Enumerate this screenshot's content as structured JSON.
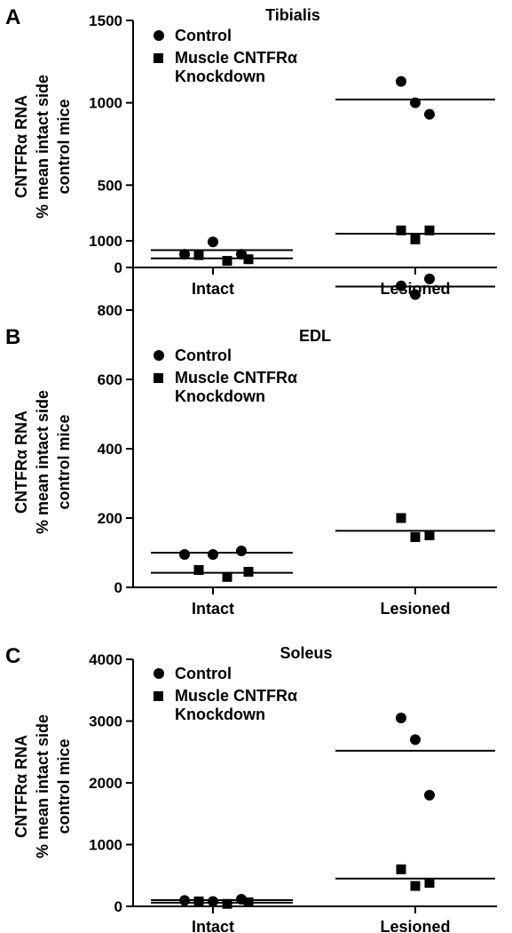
{
  "chart_data": [
    {
      "type": "scatter",
      "panel": "A",
      "title": "Tibialis",
      "ylabel": [
        "CNTFRα RNA",
        "% mean intact side",
        "control mice"
      ],
      "categories": [
        "Intact",
        "Lesioned"
      ],
      "ylim": [
        0,
        1500
      ],
      "yticks": [
        "0",
        "500",
        "1000",
        "1500"
      ],
      "legend": [
        "Control",
        "Muscle CNTFRα",
        "Knockdown"
      ],
      "series": [
        {
          "name": "Control",
          "marker": "circle",
          "points": [
            {
              "x": "Intact",
              "y": 80
            },
            {
              "x": "Intact",
              "y": 155
            },
            {
              "x": "Intact",
              "y": 80
            },
            {
              "x": "Lesioned",
              "y": 1130
            },
            {
              "x": "Lesioned",
              "y": 1000
            },
            {
              "x": "Lesioned",
              "y": 930
            }
          ],
          "means": [
            105,
            1020
          ]
        },
        {
          "name": "Muscle CNTFRα Knockdown",
          "marker": "square",
          "points": [
            {
              "x": "Intact",
              "y": 75
            },
            {
              "x": "Intact",
              "y": 40
            },
            {
              "x": "Intact",
              "y": 50
            },
            {
              "x": "Lesioned",
              "y": 225
            },
            {
              "x": "Lesioned",
              "y": 170
            },
            {
              "x": "Lesioned",
              "y": 225
            }
          ],
          "means": [
            55,
            205
          ]
        }
      ]
    },
    {
      "type": "scatter",
      "panel": "B",
      "title": "EDL",
      "ylabel": [
        "CNTFRα RNA",
        "% mean intact side",
        "control mice"
      ],
      "categories": [
        "Intact",
        "Lesioned"
      ],
      "ylim": [
        0,
        1000
      ],
      "yticks": [
        "0",
        "200",
        "400",
        "600",
        "800",
        "1000"
      ],
      "legend": [
        "Control",
        "Muscle CNTFRα",
        "Knockdown"
      ],
      "series": [
        {
          "name": "Control",
          "marker": "circle",
          "points": [
            {
              "x": "Intact",
              "y": 95
            },
            {
              "x": "Intact",
              "y": 95
            },
            {
              "x": "Intact",
              "y": 105
            },
            {
              "x": "Lesioned",
              "y": 870
            },
            {
              "x": "Lesioned",
              "y": 845
            },
            {
              "x": "Lesioned",
              "y": 890
            }
          ],
          "means": [
            100,
            868
          ]
        },
        {
          "name": "Muscle CNTFRα Knockdown",
          "marker": "square",
          "points": [
            {
              "x": "Intact",
              "y": 50
            },
            {
              "x": "Intact",
              "y": 30
            },
            {
              "x": "Intact",
              "y": 45
            },
            {
              "x": "Lesioned",
              "y": 200
            },
            {
              "x": "Lesioned",
              "y": 145
            },
            {
              "x": "Lesioned",
              "y": 150
            }
          ],
          "means": [
            42,
            163
          ]
        }
      ]
    },
    {
      "type": "scatter",
      "panel": "C",
      "title": "Soleus",
      "ylabel": [
        "CNTFRα RNA",
        "% mean intact side",
        "control mice"
      ],
      "categories": [
        "Intact",
        "Lesioned"
      ],
      "ylim": [
        0,
        4000
      ],
      "yticks": [
        "0",
        "1000",
        "2000",
        "3000",
        "4000"
      ],
      "legend": [
        "Control",
        "Muscle CNTFRα",
        "Knockdown"
      ],
      "series": [
        {
          "name": "Control",
          "marker": "circle",
          "points": [
            {
              "x": "Intact",
              "y": 95
            },
            {
              "x": "Intact",
              "y": 80
            },
            {
              "x": "Intact",
              "y": 115
            },
            {
              "x": "Lesioned",
              "y": 3050
            },
            {
              "x": "Lesioned",
              "y": 2700
            },
            {
              "x": "Lesioned",
              "y": 1800
            }
          ],
          "means": [
            100,
            2520
          ]
        },
        {
          "name": "Muscle CNTFRα Knockdown",
          "marker": "square",
          "points": [
            {
              "x": "Intact",
              "y": 80
            },
            {
              "x": "Intact",
              "y": 40
            },
            {
              "x": "Intact",
              "y": 65
            },
            {
              "x": "Lesioned",
              "y": 600
            },
            {
              "x": "Lesioned",
              "y": 330
            },
            {
              "x": "Lesioned",
              "y": 380
            }
          ],
          "means": [
            60,
            450
          ]
        }
      ]
    }
  ]
}
